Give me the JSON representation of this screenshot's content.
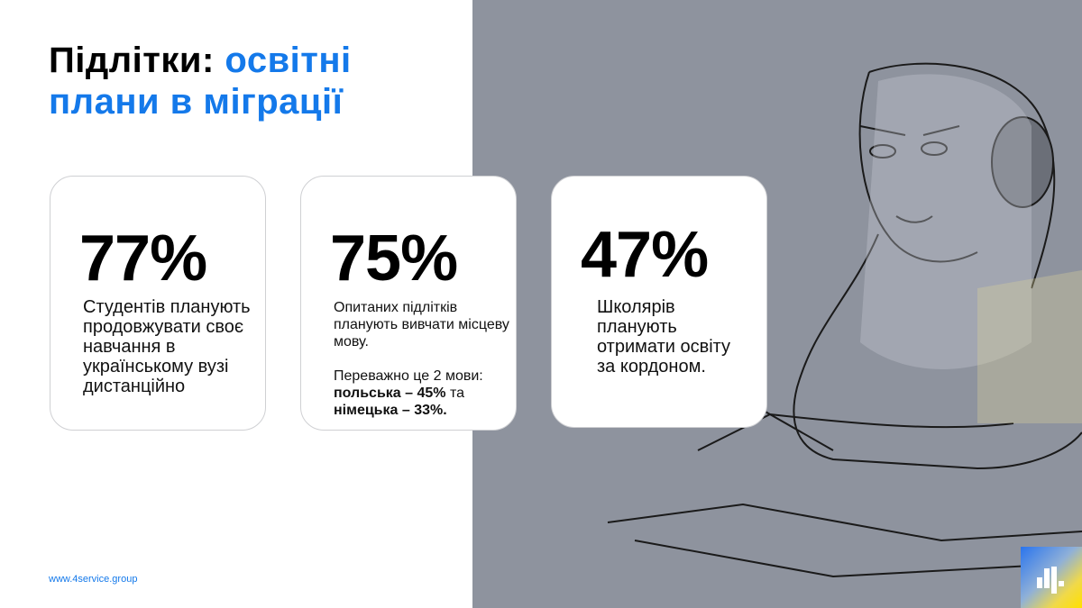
{
  "title": {
    "part1": "Підлітки: ",
    "part2": "освітні",
    "part3": "плани в міграції"
  },
  "colors": {
    "accent": "#1479ea",
    "panel": "#8e939e"
  },
  "cards": [
    {
      "value": "77%",
      "text": "Студентів планують продовжувати своє навчання в українському вузі дистанційно"
    },
    {
      "value": "75%",
      "text": "Опитаних підлітків планують вивчати місцеву мову.",
      "text2": "Переважно це 2 мови:",
      "bold1": "польська – 45%",
      "mid": " та ",
      "bold2": "німецька – 33%."
    },
    {
      "value": "47%",
      "text": "Школярів планують отримати освіту за кордоном."
    }
  ],
  "footer": {
    "url": "www.4service.group"
  },
  "logo": {
    "icon": "bar-chart-logo"
  },
  "illustration": {
    "icon": "girl-with-headphones-drawing"
  }
}
